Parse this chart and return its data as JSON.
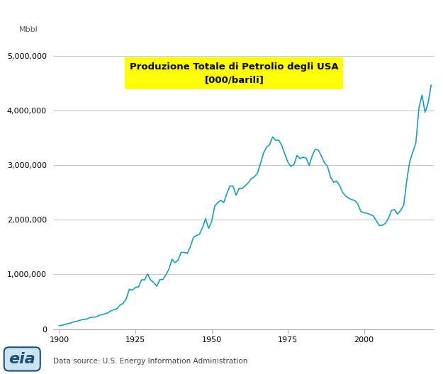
{
  "title_line1": "Produzione Totale di Petrolio degli USA",
  "title_line2": "[000/barili]",
  "ylabel": "Mbbl",
  "source": "Data source: U.S. Energy Information Administration",
  "line_color": "#1a9dbf",
  "title_bg_color": "#ffff00",
  "title_text_color": "#000000",
  "bg_color": "#ffffff",
  "grid_color": "#c8c8c8",
  "xlim": [
    1898,
    2023
  ],
  "ylim": [
    0,
    5200000
  ],
  "yticks": [
    0,
    1000000,
    2000000,
    3000000,
    4000000,
    5000000
  ],
  "xticks": [
    1900,
    1925,
    1950,
    1975,
    2000
  ],
  "years": [
    1900,
    1901,
    1902,
    1903,
    1904,
    1905,
    1906,
    1907,
    1908,
    1909,
    1910,
    1911,
    1912,
    1913,
    1914,
    1915,
    1916,
    1917,
    1918,
    1919,
    1920,
    1921,
    1922,
    1923,
    1924,
    1925,
    1926,
    1927,
    1928,
    1929,
    1930,
    1931,
    1932,
    1933,
    1934,
    1935,
    1936,
    1937,
    1938,
    1939,
    1940,
    1941,
    1942,
    1943,
    1944,
    1945,
    1946,
    1947,
    1948,
    1949,
    1950,
    1951,
    1952,
    1953,
    1954,
    1955,
    1956,
    1957,
    1958,
    1959,
    1960,
    1961,
    1962,
    1963,
    1964,
    1965,
    1966,
    1967,
    1968,
    1969,
    1970,
    1971,
    1972,
    1973,
    1974,
    1975,
    1976,
    1977,
    1978,
    1979,
    1980,
    1981,
    1982,
    1983,
    1984,
    1985,
    1986,
    1987,
    1988,
    1989,
    1990,
    1991,
    1992,
    1993,
    1994,
    1995,
    1996,
    1997,
    1998,
    1999,
    2000,
    2001,
    2002,
    2003,
    2004,
    2005,
    2006,
    2007,
    2008,
    2009,
    2010,
    2011,
    2012,
    2013,
    2014,
    2015,
    2016,
    2017,
    2018,
    2019,
    2020,
    2021,
    2022
  ],
  "values": [
    63621,
    69389,
    88767,
    100461,
    117081,
    134717,
    147328,
    166095,
    178527,
    183171,
    209557,
    220449,
    222488,
    248481,
    265763,
    281190,
    300767,
    335316,
    355928,
    378367,
    442929,
    472183,
    557531,
    732407,
    713940,
    763744,
    770874,
    901129,
    901474,
    1007323,
    898011,
    851081,
    785159,
    905655,
    908073,
    996596,
    1099658,
    1279160,
    1214355,
    1264962,
    1402822,
    1402585,
    1386645,
    1505618,
    1677904,
    1713655,
    1733616,
    1856964,
    2020351,
    1841940,
    1973574,
    2247711,
    2315545,
    2357082,
    2314654,
    2484428,
    2617283,
    2617283,
    2449420,
    2574996,
    2574996,
    2621758,
    2676489,
    2752723,
    2786822,
    2848514,
    3027763,
    3215742,
    3329000,
    3371000,
    3517450,
    3453914,
    3455368,
    3360908,
    3202585,
    3056776,
    2975964,
    3009319,
    3178216,
    3121310,
    3146365,
    3128624,
    2995100,
    3170991,
    3293133,
    3274553,
    3168255,
    3047442,
    2979123,
    2778351,
    2684687,
    2707321,
    2624584,
    2499036,
    2431441,
    2394395,
    2366301,
    2354731,
    2281919,
    2146133,
    2130707,
    2117330,
    2097358,
    2073453,
    1983302,
    1895754,
    1898927,
    1933821,
    2027763,
    2173440,
    2187258,
    2103296,
    2172399,
    2264523,
    2710395,
    3069681,
    3241434,
    3407214,
    4045390,
    4282773,
    3967591,
    4129720,
    4464288
  ]
}
